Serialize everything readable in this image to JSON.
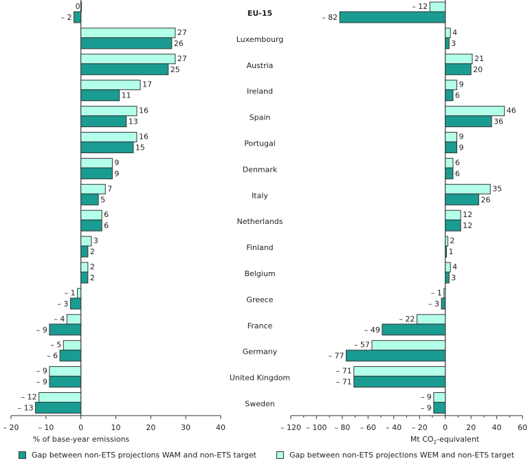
{
  "chart_data": [
    {
      "type": "bar",
      "orientation": "horizontal",
      "panel": "left",
      "xlabel": "% of base-year emissions",
      "xlim": [
        -20,
        40
      ],
      "xticks": [
        -20,
        -10,
        0,
        10,
        20,
        30,
        40
      ],
      "xtick_labels": [
        "– 20",
        "– 10",
        "0",
        "10",
        "20",
        "30",
        "40"
      ],
      "categories": [
        "EU-15",
        "Luxembourg",
        "Austria",
        "Ireland",
        "Spain",
        "Portugal",
        "Denmark",
        "Italy",
        "Netherlands",
        "Finland",
        "Belgium",
        "Greece",
        "France",
        "Germany",
        "United Kingdom",
        "Sweden"
      ],
      "series": [
        {
          "name": "Gap between non-ETS projections WEM and non-ETS target",
          "key": "wem",
          "values": [
            0,
            27,
            27,
            17,
            16,
            16,
            9,
            7,
            6,
            3,
            2,
            -1,
            -4,
            -5,
            -9,
            -12
          ]
        },
        {
          "name": "Gap between non-ETS projections WAM and non-ETS target",
          "key": "wam",
          "values": [
            -2,
            26,
            25,
            11,
            13,
            15,
            9,
            5,
            6,
            2,
            2,
            -3,
            -9,
            -6,
            -9,
            -13
          ]
        }
      ],
      "grid": false
    },
    {
      "type": "bar",
      "orientation": "horizontal",
      "panel": "right",
      "xlabel": "Mt CO2-equivalent",
      "xlim": [
        -120,
        60
      ],
      "xticks": [
        -120,
        -100,
        -80,
        -60,
        -40,
        -20,
        0,
        20,
        40,
        60
      ],
      "xtick_labels": [
        "– 120",
        "– 100",
        "– 80",
        "– 60",
        "– 40",
        "– 20",
        "0",
        "20",
        "40",
        "60"
      ],
      "categories": [
        "EU-15",
        "Luxembourg",
        "Austria",
        "Ireland",
        "Spain",
        "Portugal",
        "Denmark",
        "Italy",
        "Netherlands",
        "Finland",
        "Belgium",
        "Greece",
        "France",
        "Germany",
        "United Kingdom",
        "Sweden"
      ],
      "series": [
        {
          "name": "Gap between non-ETS projections WEM and non-ETS target",
          "key": "wem",
          "values": [
            -12,
            4,
            21,
            9,
            46,
            9,
            6,
            35,
            12,
            2,
            4,
            -1,
            -22,
            -57,
            -71,
            -9
          ]
        },
        {
          "name": "Gap between non-ETS projections WAM and non-ETS target",
          "key": "wam",
          "values": [
            -82,
            3,
            20,
            6,
            36,
            9,
            6,
            26,
            12,
            1,
            3,
            -3,
            -49,
            -77,
            -71,
            -9
          ]
        }
      ],
      "grid": false
    }
  ],
  "colors": {
    "wam": "#1a9c92",
    "wem": "#b3ffea",
    "stroke": "#333333"
  },
  "axis": {
    "left_title": "% of base-year emissions",
    "right_title_prefix": "Mt CO",
    "right_title_sub": "2",
    "right_title_suffix": "-equivalent"
  },
  "legend": {
    "position": "bottom",
    "items": [
      {
        "key": "wam",
        "label": "Gap between non-ETS projections WAM and non-ETS target"
      },
      {
        "key": "wem",
        "label": "Gap between non-ETS projections WEM and non-ETS target"
      }
    ]
  }
}
